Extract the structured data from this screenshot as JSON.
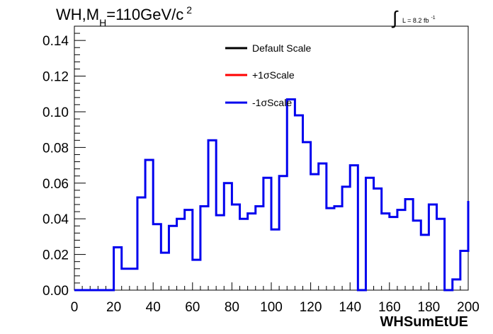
{
  "chart_data": {
    "type": "histogram-step",
    "title": {
      "main": "WH,M",
      "sub": "H",
      "rest": "=110GeV/c",
      "sup": "2"
    },
    "luminosity": {
      "integral": "∫",
      "text": "L = 8.2 fb",
      "sup": "-1"
    },
    "xlabel": "WHSumEtUE",
    "ylabel": "",
    "xlim": [
      0,
      200
    ],
    "ylim": [
      0,
      0.148
    ],
    "x_ticks": [
      0,
      20,
      40,
      60,
      80,
      100,
      120,
      140,
      160,
      180,
      200
    ],
    "x_tick_labels": [
      "0",
      "20",
      "40",
      "60",
      "80",
      "100",
      "120",
      "140",
      "160",
      "180",
      "200"
    ],
    "y_ticks": [
      0,
      0.02,
      0.04,
      0.06,
      0.08,
      0.1,
      0.12,
      0.14
    ],
    "y_tick_labels": [
      "0.00",
      "0.02",
      "0.04",
      "0.06",
      "0.08",
      "0.10",
      "0.12",
      "0.14"
    ],
    "legend_position": "top-center",
    "legend": [
      {
        "label": "Default Scale",
        "color": "#000000"
      },
      {
        "label": "+1σScale",
        "color": "#ff0000"
      },
      {
        "label": "-1σScale",
        "color": "#0000ee"
      }
    ],
    "bin_width": 4,
    "bin_edges_start": 0,
    "series": [
      {
        "name": "-1σScale",
        "color": "#0000ee",
        "values": [
          0,
          0,
          0,
          0,
          0,
          0.024,
          0.012,
          0.012,
          0.052,
          0.073,
          0.037,
          0.021,
          0.036,
          0.04,
          0.045,
          0.017,
          0.047,
          0.084,
          0.042,
          0.06,
          0.048,
          0.04,
          0.043,
          0.047,
          0.063,
          0.034,
          0.064,
          0.107,
          0.098,
          0.083,
          0.065,
          0.071,
          0.046,
          0.047,
          0.058,
          0.07,
          0.0,
          0.063,
          0.057,
          0.043,
          0.041,
          0.045,
          0.051,
          0.039,
          0.031,
          0.048,
          0.04,
          0.0,
          0.006,
          0.022,
          0.05
        ]
      }
    ]
  }
}
